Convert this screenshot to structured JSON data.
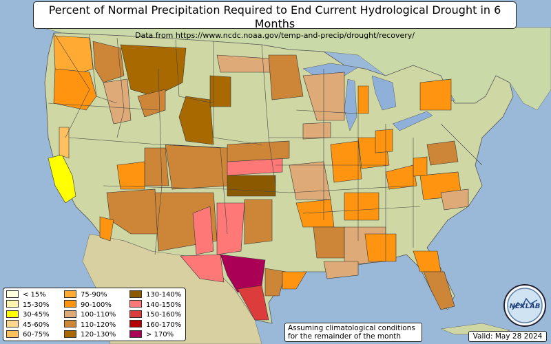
{
  "header": {
    "title": "Percent of Normal Precipitation Required to End Current Hydrological Drought in 6 Months",
    "subtitle": "Data from https://www.ncdc.noaa.gov/temp-and-precip/drought/recovery/"
  },
  "legend": [
    {
      "label": "< 15%",
      "color": "#ffffe0"
    },
    {
      "label": "15-30%",
      "color": "#fff5b0"
    },
    {
      "label": "30-45%",
      "color": "#ffff00"
    },
    {
      "label": "45-60%",
      "color": "#ffd890"
    },
    {
      "label": "60-75%",
      "color": "#ffc060"
    },
    {
      "label": "75-90%",
      "color": "#ffaa33"
    },
    {
      "label": "90-100%",
      "color": "#ff9410"
    },
    {
      "label": "100-110%",
      "color": "#deaa78"
    },
    {
      "label": "110-120%",
      "color": "#cd8538"
    },
    {
      "label": "120-130%",
      "color": "#a86a00"
    },
    {
      "label": "130-140%",
      "color": "#8b5a00"
    },
    {
      "label": "140-150%",
      "color": "#ff7878"
    },
    {
      "label": "150-160%",
      "color": "#dd3c3c"
    },
    {
      "label": "160-170%",
      "color": "#b40000"
    },
    {
      "label": "> 170%",
      "color": "#aa0055"
    }
  ],
  "note": {
    "line1": "Assuming climatological conditions",
    "line2": "for the remainder of the month"
  },
  "valid_label": "Valid: May 28 2024",
  "logo_text": "NEXLAB"
}
